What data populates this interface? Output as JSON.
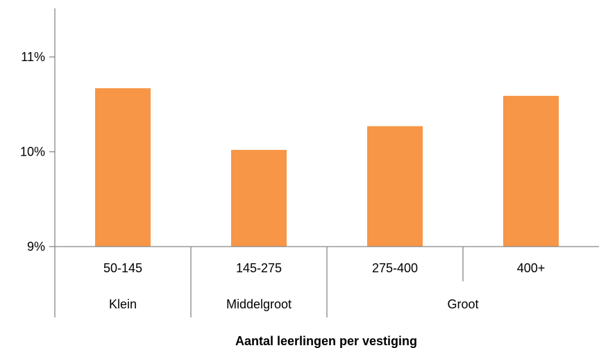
{
  "chart_data": {
    "type": "bar",
    "title": "",
    "xlabel": "Aantal leerlingen per vestiging",
    "ylabel": "",
    "ylim": [
      9,
      11.5
    ],
    "yticks": [
      {
        "value": 9,
        "label": "9%"
      },
      {
        "value": 10,
        "label": "10%"
      },
      {
        "value": 11,
        "label": "11%"
      }
    ],
    "grid": false,
    "categories": [
      "50-145",
      "145-275",
      "275-400",
      "400+"
    ],
    "values": [
      10.67,
      10.02,
      10.27,
      10.59
    ],
    "groups": [
      {
        "label": "Klein",
        "span": 1
      },
      {
        "label": "Middelgroot",
        "span": 1
      },
      {
        "label": "Groot",
        "span": 2
      }
    ],
    "bar_color": "#f79646",
    "axis_color": "#868686"
  }
}
